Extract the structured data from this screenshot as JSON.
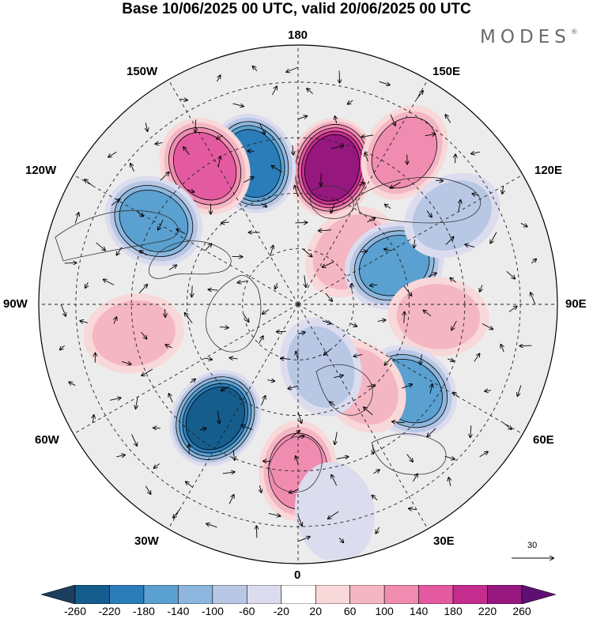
{
  "title": "Base 10/06/2025 00 UTC, valid 20/06/2025 00 UTC",
  "brand": "MODES",
  "brand_mark": "®",
  "lon_labels": {
    "top": "180",
    "bottom": "0",
    "left": "90W",
    "right": "90E",
    "w150": "150W",
    "e150": "150E",
    "w120": "120W",
    "e120": "120E",
    "w60": "60W",
    "e60": "60E",
    "w30": "30W",
    "e30": "30E"
  },
  "vector_scale": {
    "label": "30"
  },
  "colorbar": {
    "ticks": [
      "-260",
      "-220",
      "-180",
      "-140",
      "-100",
      "-60",
      "-20",
      "20",
      "60",
      "100",
      "140",
      "180",
      "220",
      "260"
    ],
    "colors": [
      "#1b3d5e",
      "#155d8c",
      "#2b7dba",
      "#5aa0d0",
      "#8cb6dd",
      "#b8c7e4",
      "#dcdcef",
      "#ffffff",
      "#f8d8d8",
      "#f5b6c4",
      "#f08cb0",
      "#e45aa0",
      "#c42d8e",
      "#96187f",
      "#5f0f74"
    ]
  },
  "anomalies": [
    {
      "lon": 166,
      "lat": 52,
      "value": 240
    },
    {
      "lon": -162,
      "lat": 50,
      "value": -200
    },
    {
      "lon": 145,
      "lat": 40,
      "value": 120
    },
    {
      "lon": -146,
      "lat": 45,
      "value": 150
    },
    {
      "lon": -120,
      "lat": 45,
      "value": -160
    },
    {
      "lon": 135,
      "lat": 70,
      "value": 90
    },
    {
      "lon": 112,
      "lat": 62,
      "value": -150
    },
    {
      "lon": 85,
      "lat": 52,
      "value": 90
    },
    {
      "lon": 52,
      "lat": 52,
      "value": -150
    },
    {
      "lon": 38,
      "lat": 62,
      "value": 90
    },
    {
      "lon": 20,
      "lat": 72,
      "value": -70
    },
    {
      "lon": -36,
      "lat": 52,
      "value": -230
    },
    {
      "lon": 0,
      "lat": 45,
      "value": 110
    },
    {
      "lon": 10,
      "lat": 33,
      "value": -50
    },
    {
      "lon": -80,
      "lat": 45,
      "value": 60
    },
    {
      "lon": 120,
      "lat": 42,
      "value": -60
    }
  ],
  "icons": [
    "north-arrow-icon"
  ]
}
